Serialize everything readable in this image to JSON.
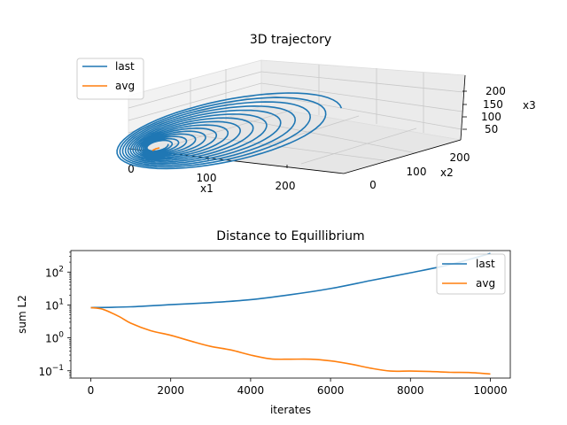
{
  "colors": {
    "last": "#1f77b4",
    "avg": "#ff7f0e"
  },
  "chart_data": [
    {
      "type": "line3d",
      "title": "3D trajectory",
      "xlabel": "x1",
      "ylabel": "x2",
      "zlabel": "x3",
      "x_ticks": [
        "0",
        "100",
        "200"
      ],
      "y_ticks": [
        "0",
        "100",
        "200"
      ],
      "z_ticks": [
        "50",
        "100",
        "150",
        "200"
      ],
      "legend": [
        "last",
        "avg"
      ],
      "legend_position": "upper-left",
      "grid": true,
      "series": [
        {
          "name": "last",
          "description": "outward spiral trajectory growing to ~240 in x1"
        },
        {
          "name": "avg",
          "description": "short trajectory near origin"
        }
      ]
    },
    {
      "type": "line",
      "title": "Distance to Equillibrium",
      "xlabel": "iterates",
      "ylabel": "sum L2",
      "yscale": "log",
      "xlim": [
        0,
        10000
      ],
      "ylim": [
        0.06,
        450
      ],
      "x_ticks": [
        "0",
        "2000",
        "4000",
        "6000",
        "8000",
        "10000"
      ],
      "y_tick_base": [
        "10",
        "10",
        "10",
        "10"
      ],
      "y_tick_exp": [
        "−1",
        "0",
        "1",
        "2"
      ],
      "legend": [
        "last",
        "avg"
      ],
      "legend_position": "upper-right",
      "grid": false,
      "series": [
        {
          "name": "last",
          "x": [
            0,
            1000,
            2000,
            3000,
            4000,
            5000,
            6000,
            7000,
            8000,
            9000,
            10000
          ],
          "y": [
            8.3,
            8.8,
            10.2,
            11.8,
            14.5,
            20.5,
            31.5,
            55,
            95,
            170,
            370
          ]
        },
        {
          "name": "avg",
          "x": [
            0,
            300,
            700,
            1000,
            1500,
            2000,
            2500,
            3000,
            3500,
            4000,
            4500,
            5000,
            5500,
            6000,
            6500,
            7000,
            7500,
            8000,
            8500,
            9000,
            9500,
            10000
          ],
          "y": [
            8.3,
            7.4,
            4.5,
            2.8,
            1.65,
            1.2,
            0.8,
            0.55,
            0.43,
            0.3,
            0.23,
            0.225,
            0.225,
            0.2,
            0.16,
            0.12,
            0.098,
            0.098,
            0.095,
            0.09,
            0.088,
            0.08
          ]
        }
      ]
    }
  ]
}
